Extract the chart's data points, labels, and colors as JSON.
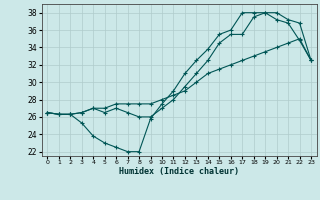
{
  "xlabel": "Humidex (Indice chaleur)",
  "background_color": "#cce8e8",
  "grid_color": "#b0cccc",
  "line_color": "#005555",
  "xlim": [
    -0.5,
    23.5
  ],
  "ylim": [
    21.5,
    39.0
  ],
  "xticks": [
    0,
    1,
    2,
    3,
    4,
    5,
    6,
    7,
    8,
    9,
    10,
    11,
    12,
    13,
    14,
    15,
    16,
    17,
    18,
    19,
    20,
    21,
    22,
    23
  ],
  "yticks": [
    22,
    24,
    26,
    28,
    30,
    32,
    34,
    36,
    38
  ],
  "series1_x": [
    0,
    1,
    2,
    3,
    4,
    5,
    6,
    7,
    8,
    9,
    10,
    11,
    12,
    13,
    14,
    15,
    16,
    17,
    18,
    19,
    20,
    21,
    22,
    23
  ],
  "series1_y": [
    26.5,
    26.3,
    26.3,
    26.5,
    27.0,
    26.5,
    27.0,
    26.5,
    26.0,
    26.0,
    27.0,
    28.0,
    29.5,
    31.0,
    32.5,
    34.5,
    35.5,
    35.5,
    37.5,
    38.0,
    38.0,
    37.2,
    36.8,
    32.5
  ],
  "series2_x": [
    0,
    1,
    2,
    3,
    4,
    5,
    6,
    7,
    8,
    9,
    10,
    11,
    12,
    13,
    14,
    15,
    16,
    17,
    18,
    19,
    20,
    21,
    22,
    23
  ],
  "series2_y": [
    26.5,
    26.3,
    26.3,
    25.3,
    23.8,
    23.0,
    22.5,
    22.0,
    22.0,
    25.8,
    27.5,
    29.0,
    31.0,
    32.5,
    33.8,
    35.5,
    36.0,
    38.0,
    38.0,
    38.0,
    37.2,
    36.8,
    34.8,
    32.5
  ],
  "series3_x": [
    0,
    1,
    2,
    3,
    4,
    5,
    6,
    7,
    8,
    9,
    10,
    11,
    12,
    13,
    14,
    15,
    16,
    17,
    18,
    19,
    20,
    21,
    22,
    23
  ],
  "series3_y": [
    26.5,
    26.3,
    26.3,
    26.5,
    27.0,
    27.0,
    27.5,
    27.5,
    27.5,
    27.5,
    28.0,
    28.5,
    29.0,
    30.0,
    31.0,
    31.5,
    32.0,
    32.5,
    33.0,
    33.5,
    34.0,
    34.5,
    35.0,
    32.5
  ]
}
